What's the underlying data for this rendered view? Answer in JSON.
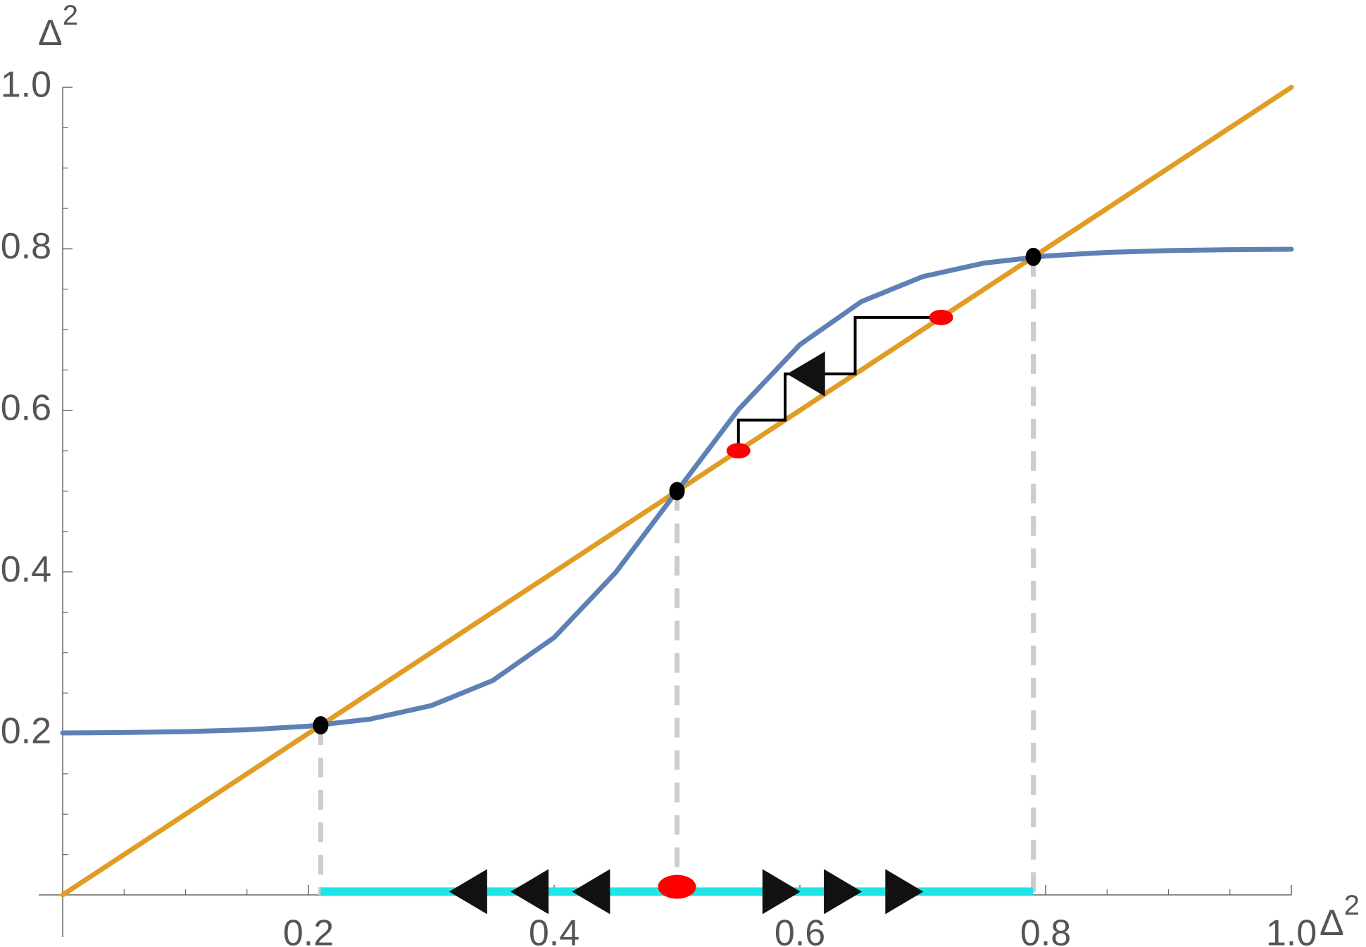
{
  "chart_data": {
    "type": "line",
    "x_label": {
      "base": "Δ",
      "sup": "2"
    },
    "y_label": {
      "base": "Δ",
      "sup": "2"
    },
    "xlim": [
      0,
      1
    ],
    "ylim": [
      0,
      1
    ],
    "xticks": [
      0.2,
      0.4,
      0.6,
      0.8,
      {
        "value": 1,
        "label": "1.0"
      }
    ],
    "yticks": [
      0.2,
      0.4,
      0.6,
      0.8,
      {
        "value": 1,
        "label": "1.0"
      }
    ],
    "minor_xticks": [
      0.05,
      0.1,
      0.15,
      0.25,
      0.3,
      0.35,
      0.45,
      0.5,
      0.55,
      0.65,
      0.7,
      0.75,
      0.85,
      0.9,
      0.95
    ],
    "minor_yticks": [
      0.05,
      0.1,
      0.15,
      0.25,
      0.3,
      0.35,
      0.45,
      0.5,
      0.55,
      0.65,
      0.7,
      0.75,
      0.85,
      0.9,
      0.95
    ],
    "series": [
      {
        "color": "#5e81b5",
        "x": [
          0,
          0.05,
          0.1,
          0.15,
          0.2,
          0.25,
          0.3,
          0.35,
          0.4,
          0.45,
          0.5,
          0.55,
          0.6,
          0.65,
          0.7,
          0.75,
          0.8,
          0.85,
          0.9,
          0.95,
          1
        ],
        "values": [
          0.2005,
          0.2011,
          0.2022,
          0.2044,
          0.2089,
          0.2176,
          0.2344,
          0.2654,
          0.3187,
          0.3991,
          0.5,
          0.6009,
          0.6813,
          0.7346,
          0.7656,
          0.7824,
          0.7911,
          0.7956,
          0.7978,
          0.7989,
          0.7995
        ]
      },
      {
        "color": "#e09c24",
        "x": [
          0,
          1
        ],
        "values": [
          0,
          1
        ]
      }
    ],
    "cobweb": {
      "color": "#000000",
      "x": [
        0.715,
        0.645,
        0.645,
        0.588,
        0.588,
        0.55,
        0.55
      ],
      "y": [
        0.715,
        0.715,
        0.645,
        0.645,
        0.588,
        0.588,
        0.55
      ]
    },
    "fixed_points": {
      "color": "#000000",
      "x": [
        0.21,
        0.5,
        0.79
      ],
      "y": [
        0.21,
        0.5,
        0.79
      ]
    },
    "iterates": {
      "color": "#ff0000",
      "x": [
        0.55,
        0.715
      ],
      "y": [
        0.55,
        0.715
      ]
    },
    "axis_marker": {
      "color": "#ff0000",
      "x": 0.5,
      "y": 0.01
    },
    "segment": {
      "color": "#1ee6e6",
      "x": [
        0.21,
        0.79
      ],
      "y": [
        0.004,
        0.004
      ]
    },
    "drop_line_color": "#cccccc",
    "arrows": {
      "color": "#111111",
      "x": [
        0.33,
        0.38,
        0.43,
        0.585,
        0.635,
        0.685,
        0.605
      ],
      "y": [
        0.004,
        0.004,
        0.004,
        0.004,
        0.004,
        0.004,
        0.645
      ],
      "direction": [
        "left",
        "left",
        "left",
        "right",
        "right",
        "right",
        "left"
      ]
    }
  }
}
